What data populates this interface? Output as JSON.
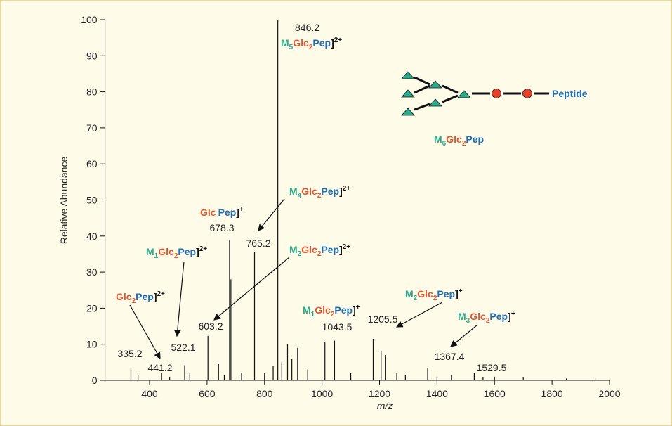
{
  "chart_data": {
    "type": "spectrum",
    "y_label": "Relative Abundance",
    "x_label": "m/z",
    "xlim": [
      250,
      2000
    ],
    "ylim": [
      0,
      100
    ],
    "xticks": [
      400,
      600,
      800,
      1000,
      1200,
      1400,
      1600,
      1800,
      2000
    ],
    "yticks": [
      0,
      10,
      20,
      30,
      40,
      50,
      60,
      70,
      80,
      90,
      100
    ],
    "color": "#111111",
    "x": [
      335.2,
      360,
      441.2,
      470,
      522.1,
      540,
      603.2,
      640,
      660,
      678.3,
      683,
      720,
      765.2,
      800,
      830,
      846.2,
      860,
      880,
      895,
      915,
      950,
      1010,
      1043.5,
      1100,
      1178,
      1205.5,
      1220,
      1260,
      1290,
      1367.4,
      1400,
      1450,
      1529.5,
      1560,
      1600,
      1700,
      1850,
      1950
    ],
    "values": [
      3.2,
      1.5,
      2.0,
      1.0,
      4.2,
      2.0,
      12.3,
      4.5,
      1.5,
      39,
      28,
      2.0,
      35.5,
      2.0,
      4.0,
      100,
      5.0,
      10,
      6.0,
      9.0,
      3.0,
      10.5,
      11,
      2.0,
      11.5,
      8.0,
      7.0,
      2.0,
      1.5,
      3.5,
      1.0,
      1.5,
      2.0,
      0.8,
      1.0,
      0.8,
      0.5,
      0.5
    ],
    "ion_labels": [
      {
        "parts": [
          "M",
          "5",
          "Glc",
          "2",
          "Pep",
          "]",
          "2+"
        ]
      },
      {
        "parts": [
          "M",
          "4",
          "Glc",
          "2",
          "Pep",
          "]",
          "2+"
        ]
      },
      {
        "parts": [
          "Glc",
          "Pep",
          "]",
          "+"
        ]
      },
      {
        "parts": [
          "M",
          "1",
          "Glc",
          "2",
          "Pep",
          "]",
          "2+"
        ]
      },
      {
        "parts": [
          "M",
          "2",
          "Glc",
          "2",
          "Pep",
          "]",
          "2+"
        ]
      },
      {
        "parts": [
          "Glc",
          "2",
          "Pep",
          "]",
          "2+"
        ]
      },
      {
        "parts": [
          "M",
          "1",
          "Glc",
          "2",
          "Pep",
          "]",
          "+"
        ]
      },
      {
        "parts": [
          "M",
          "2",
          "Glc",
          "2",
          "Pep",
          "]",
          "+"
        ]
      },
      {
        "parts": [
          "M",
          "3",
          "Glc",
          "2",
          "Pep",
          "]",
          "+"
        ]
      },
      {
        "parts": [
          "M",
          "6",
          "Glc",
          "2",
          "Pep"
        ]
      }
    ],
    "peptide_label": "Peptide"
  }
}
